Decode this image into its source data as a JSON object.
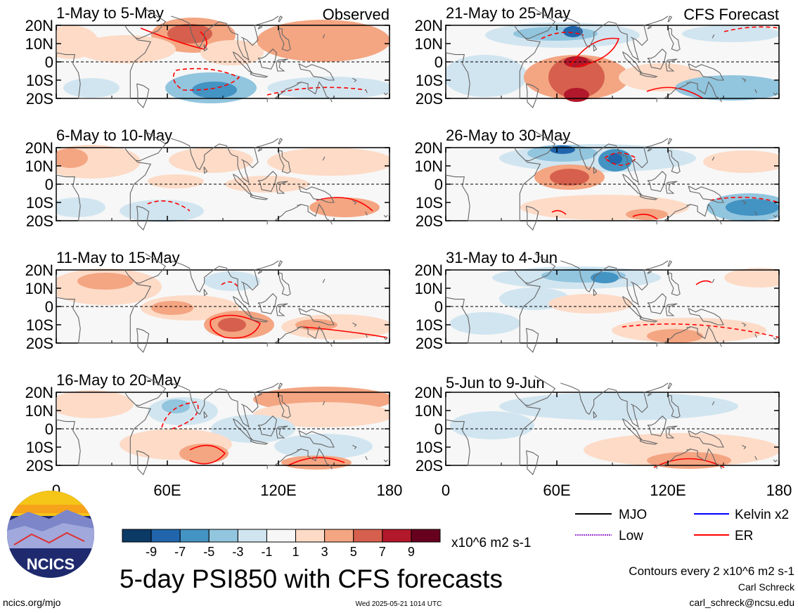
{
  "colors": {
    "neg9": "#0b3a67",
    "neg7": "#2166ac",
    "neg5": "#4393c3",
    "neg3": "#92c5de",
    "neg1": "#d1e5f0",
    "zero": "#f7f7f7",
    "pos1": "#fddbc7",
    "pos3": "#f4a582",
    "pos5": "#d6604d",
    "pos7": "#b2182b",
    "pos9": "#67001f",
    "mjo": "#000000",
    "kelvin": "#0000ff",
    "low": "#9933cc",
    "er": "#ff0000",
    "land": "#666666"
  },
  "panels": [
    {
      "id": "p1",
      "period": "1-May to 5-May",
      "corner_label": "Observed"
    },
    {
      "id": "p2",
      "period": "6-May to 10-May",
      "corner_label": ""
    },
    {
      "id": "p3",
      "period": "11-May to 15-May",
      "corner_label": ""
    },
    {
      "id": "p4",
      "period": "16-May to 20-May",
      "corner_label": ""
    },
    {
      "id": "p5",
      "period": "21-May to 25-May",
      "corner_label": "CFS Forecast"
    },
    {
      "id": "p6",
      "period": "26-May to 30-May",
      "corner_label": ""
    },
    {
      "id": "p7",
      "period": "31-May to 4-Jun",
      "corner_label": ""
    },
    {
      "id": "p8",
      "period": "5-Jun to 9-Jun",
      "corner_label": ""
    }
  ],
  "axes": {
    "lat_labels": [
      "20N",
      "10N",
      "0",
      "10S",
      "20S"
    ],
    "lon_labels": [
      "0",
      "60E",
      "120E",
      "180"
    ]
  },
  "colorbar": {
    "tick_labels": [
      "-9",
      "-7",
      "-5",
      "-3",
      "-1",
      "1",
      "3",
      "5",
      "7",
      "9"
    ],
    "units": "x10^6 m2 s-1"
  },
  "legend": {
    "mjo": "MJO",
    "kelvin": "Kelvin x2",
    "low": "Low",
    "er": "ER"
  },
  "title": "5-day PSI850 with CFS forecasts",
  "contour_note": "Contours every 2 x10^6 m2 s-1",
  "author": "Carl Schreck",
  "email": "carl_schreck@ncsu.edu",
  "website": "ncics.org/mjo",
  "timestamp": "Wed 2025-05-21 1014 UTC",
  "logo": {
    "text": "NCICS"
  }
}
